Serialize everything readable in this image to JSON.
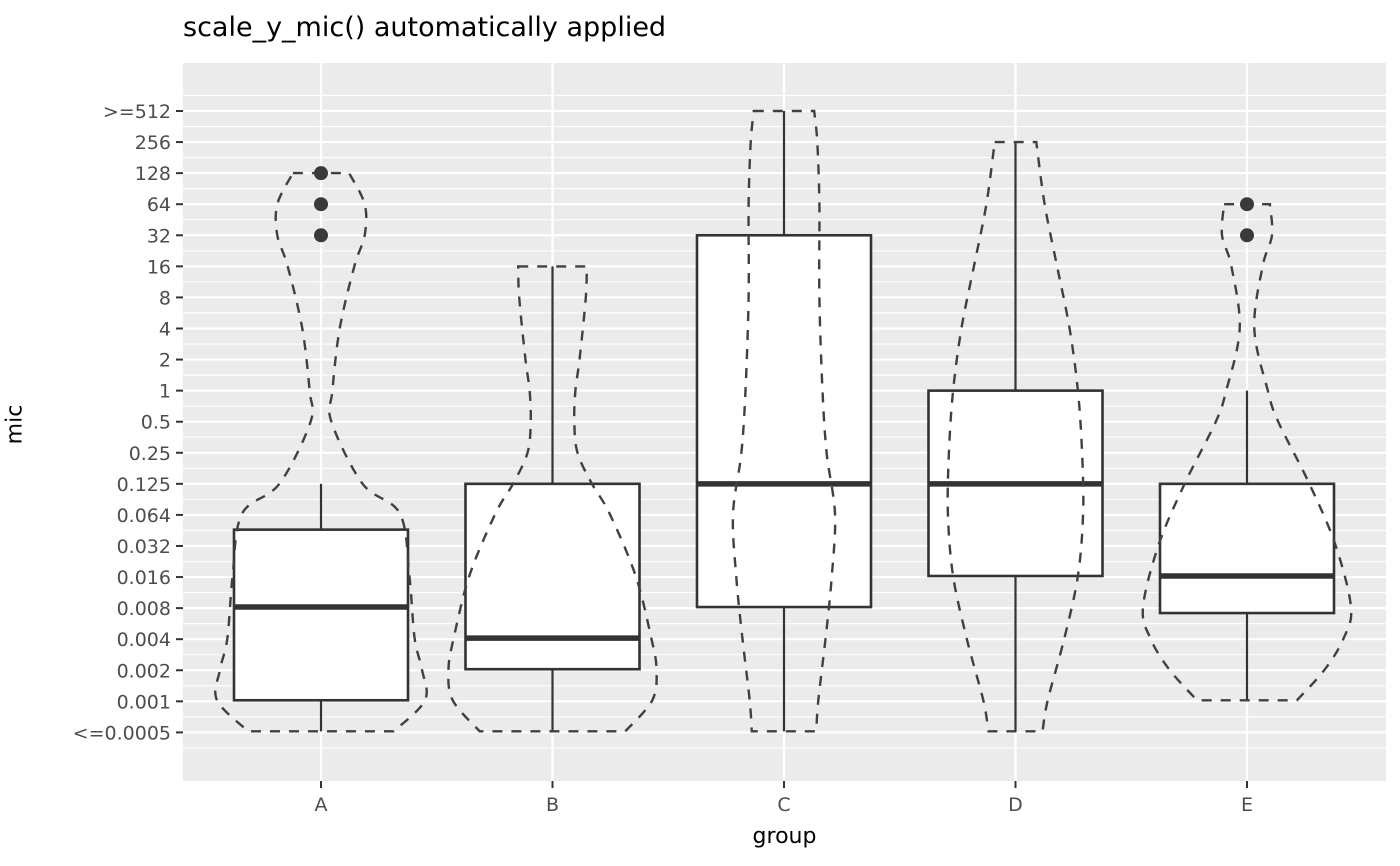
{
  "title": "scale_y_mic() automatically applied",
  "chart_data": {
    "type": "boxplot",
    "overlay": "dashed-violin-outline",
    "title": "scale_y_mic() automatically applied",
    "xlabel": "group",
    "ylabel": "mic",
    "categories": [
      "A",
      "B",
      "C",
      "D",
      "E"
    ],
    "y_scale": "log2",
    "y_range_log2": [
      -11,
      9
    ],
    "y_ticks": [
      {
        "label": ">=512",
        "log2": 9
      },
      {
        "label": "256",
        "log2": 8
      },
      {
        "label": "128",
        "log2": 7
      },
      {
        "label": "64",
        "log2": 6
      },
      {
        "label": "32",
        "log2": 5
      },
      {
        "label": "16",
        "log2": 4
      },
      {
        "label": "8",
        "log2": 3
      },
      {
        "label": "4",
        "log2": 2
      },
      {
        "label": "2",
        "log2": 1
      },
      {
        "label": "1",
        "log2": 0
      },
      {
        "label": "0.5",
        "log2": -1
      },
      {
        "label": "0.25",
        "log2": -2
      },
      {
        "label": "0.125",
        "log2": -3
      },
      {
        "label": "0.064",
        "log2": -4
      },
      {
        "label": "0.032",
        "log2": -5
      },
      {
        "label": "0.016",
        "log2": -6
      },
      {
        "label": "0.008",
        "log2": -7
      },
      {
        "label": "0.004",
        "log2": -8
      },
      {
        "label": "0.002",
        "log2": -9
      },
      {
        "label": "0.001",
        "log2": -10
      },
      {
        "label": "<=0.0005",
        "log2": -11
      }
    ],
    "grid": {
      "major": true,
      "minor": true,
      "vertical_major_at_categories": true
    },
    "legend": "none",
    "colors": {
      "panel_background": "#EBEBEB",
      "gridline": "#FFFFFF",
      "box_stroke": "#333333",
      "box_fill": "#FFFFFF",
      "violin_stroke": "#404040",
      "outlier_fill": "#3A3A3A",
      "tick_text": "#4D4D4D",
      "title_text": "#000000"
    },
    "groups": [
      {
        "group": "A",
        "whisker_low": 0.0005,
        "q1": 0.001,
        "median": 0.008,
        "q3": 0.045,
        "whisker_high": 0.125,
        "outliers": [
          32,
          64,
          128
        ],
        "violin_profile": [
          [
            128,
            0.27
          ],
          [
            64,
            0.42
          ],
          [
            32,
            0.42
          ],
          [
            16,
            0.32
          ],
          [
            4,
            0.18
          ],
          [
            1,
            0.11
          ],
          [
            0.5,
            0.1
          ],
          [
            0.125,
            0.4
          ],
          [
            0.064,
            0.76
          ],
          [
            0.016,
            0.85
          ],
          [
            0.004,
            0.9
          ],
          [
            0.002,
            0.97
          ],
          [
            0.001,
            1.0
          ],
          [
            0.0005,
            0.7
          ]
        ]
      },
      {
        "group": "B",
        "whisker_low": 0.0005,
        "q1": 0.002,
        "median": 0.004,
        "q3": 0.125,
        "whisker_high": 16,
        "outliers": [],
        "violin_profile": [
          [
            16,
            0.33
          ],
          [
            8,
            0.32
          ],
          [
            2,
            0.26
          ],
          [
            1,
            0.22
          ],
          [
            0.5,
            0.21
          ],
          [
            0.25,
            0.24
          ],
          [
            0.125,
            0.38
          ],
          [
            0.064,
            0.55
          ],
          [
            0.016,
            0.8
          ],
          [
            0.004,
            0.95
          ],
          [
            0.002,
            1.0
          ],
          [
            0.001,
            0.96
          ],
          [
            0.0005,
            0.7
          ]
        ]
      },
      {
        "group": "C",
        "whisker_low": 0.0005,
        "q1": 0.008,
        "median": 0.125,
        "q3": 32,
        "whisker_high": 512,
        "outliers": [],
        "violin_profile": [
          [
            512,
            0.29
          ],
          [
            256,
            0.32
          ],
          [
            64,
            0.34
          ],
          [
            8,
            0.34
          ],
          [
            1,
            0.37
          ],
          [
            0.25,
            0.41
          ],
          [
            0.064,
            0.49
          ],
          [
            0.016,
            0.46
          ],
          [
            0.004,
            0.4
          ],
          [
            0.001,
            0.33
          ],
          [
            0.0005,
            0.31
          ]
        ]
      },
      {
        "group": "D",
        "whisker_low": 0.0005,
        "q1": 0.016,
        "median": 0.125,
        "q3": 1,
        "whisker_high": 256,
        "outliers": [],
        "violin_profile": [
          [
            256,
            0.2
          ],
          [
            64,
            0.28
          ],
          [
            16,
            0.4
          ],
          [
            4,
            0.52
          ],
          [
            1,
            0.6
          ],
          [
            0.25,
            0.64
          ],
          [
            0.064,
            0.65
          ],
          [
            0.016,
            0.6
          ],
          [
            0.004,
            0.47
          ],
          [
            0.001,
            0.31
          ],
          [
            0.0005,
            0.26
          ]
        ]
      },
      {
        "group": "E",
        "whisker_low": 0.001,
        "q1": 0.007,
        "median": 0.016,
        "q3": 0.125,
        "whisker_high": 1,
        "outliers": [
          32,
          64
        ],
        "violin_profile": [
          [
            64,
            0.22
          ],
          [
            32,
            0.24
          ],
          [
            16,
            0.15
          ],
          [
            4,
            0.07
          ],
          [
            1,
            0.2
          ],
          [
            0.5,
            0.3
          ],
          [
            0.125,
            0.6
          ],
          [
            0.032,
            0.85
          ],
          [
            0.008,
            1.0
          ],
          [
            0.004,
            0.93
          ],
          [
            0.002,
            0.75
          ],
          [
            0.001,
            0.48
          ]
        ]
      }
    ]
  }
}
